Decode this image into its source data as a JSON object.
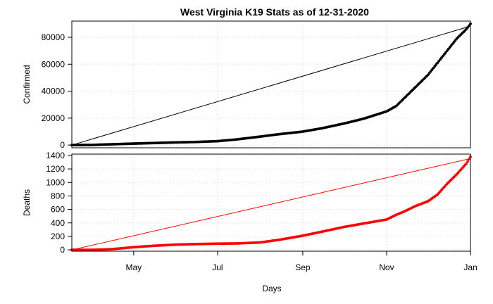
{
  "chart_data": {
    "type": "line",
    "title": "West Virginia K19 Stats as of 12-31-2020",
    "xlabel": "Days",
    "x_tick_labels": [
      "May",
      "Jul",
      "Sep",
      "Nov",
      "Jan"
    ],
    "x_tick_dates": [
      "2020-05-01",
      "2020-07-01",
      "2020-09-01",
      "2020-11-01",
      "2021-01-01"
    ],
    "xlim": [
      "2020-03-17",
      "2021-01-01"
    ],
    "grid": true,
    "panels": [
      {
        "ylabel": "Confirmed",
        "ylim": [
          -2000,
          92000
        ],
        "y_ticks": [
          0,
          20000,
          40000,
          60000,
          80000
        ],
        "series": [
          {
            "style": "points",
            "color": "#000000",
            "points": [
              [
                "2020-03-17",
                0
              ],
              [
                "2020-04-01",
                100
              ],
              [
                "2020-04-15",
                600
              ],
              [
                "2020-05-01",
                1100
              ],
              [
                "2020-05-15",
                1500
              ],
              [
                "2020-06-01",
                2000
              ],
              [
                "2020-06-15",
                2300
              ],
              [
                "2020-07-01",
                2900
              ],
              [
                "2020-07-15",
                4200
              ],
              [
                "2020-08-01",
                6300
              ],
              [
                "2020-08-15",
                8100
              ],
              [
                "2020-09-01",
                10000
              ],
              [
                "2020-09-15",
                12500
              ],
              [
                "2020-10-01",
                16000
              ],
              [
                "2020-10-15",
                19500
              ],
              [
                "2020-11-01",
                25000
              ],
              [
                "2020-11-08",
                29000
              ],
              [
                "2020-11-15",
                36000
              ],
              [
                "2020-11-22",
                43000
              ],
              [
                "2020-12-01",
                52000
              ],
              [
                "2020-12-08",
                61000
              ],
              [
                "2020-12-15",
                70000
              ],
              [
                "2020-12-22",
                79000
              ],
              [
                "2020-12-29",
                86000
              ],
              [
                "2021-01-01",
                90000
              ]
            ]
          },
          {
            "style": "line",
            "color": "#000000",
            "points": [
              [
                "2020-03-17",
                0
              ],
              [
                "2020-12-31",
                88000
              ]
            ]
          }
        ]
      },
      {
        "ylabel": "Deaths",
        "ylim": [
          -20,
          1420
        ],
        "y_ticks": [
          0,
          200,
          400,
          600,
          800,
          1000,
          1200,
          1400
        ],
        "series": [
          {
            "style": "points",
            "color": "#ff0000",
            "points": [
              [
                "2020-03-17",
                0
              ],
              [
                "2020-04-01",
                0
              ],
              [
                "2020-04-15",
                10
              ],
              [
                "2020-05-01",
                40
              ],
              [
                "2020-05-15",
                60
              ],
              [
                "2020-06-01",
                78
              ],
              [
                "2020-06-15",
                86
              ],
              [
                "2020-07-01",
                92
              ],
              [
                "2020-07-15",
                95
              ],
              [
                "2020-08-01",
                110
              ],
              [
                "2020-08-15",
                150
              ],
              [
                "2020-09-01",
                210
              ],
              [
                "2020-09-15",
                270
              ],
              [
                "2020-10-01",
                340
              ],
              [
                "2020-10-15",
                390
              ],
              [
                "2020-11-01",
                450
              ],
              [
                "2020-11-08",
                520
              ],
              [
                "2020-11-15",
                580
              ],
              [
                "2020-11-22",
                650
              ],
              [
                "2020-12-01",
                720
              ],
              [
                "2020-12-08",
                820
              ],
              [
                "2020-12-15",
                980
              ],
              [
                "2020-12-22",
                1120
              ],
              [
                "2020-12-29",
                1280
              ],
              [
                "2021-01-01",
                1380
              ]
            ]
          },
          {
            "style": "line",
            "color": "#ff0000",
            "points": [
              [
                "2020-03-17",
                0
              ],
              [
                "2020-12-31",
                1350
              ]
            ]
          }
        ]
      }
    ]
  }
}
